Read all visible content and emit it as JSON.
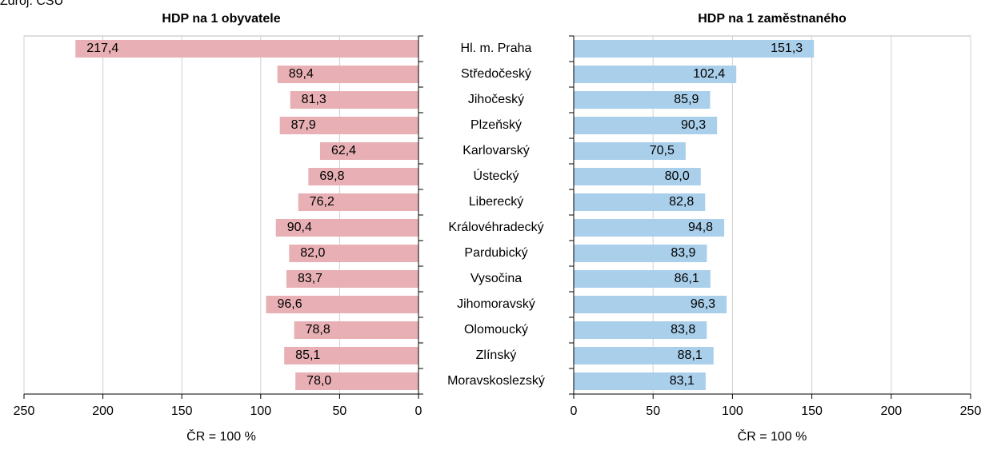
{
  "source": "Zdroj: ČSÚ",
  "chart_data": {
    "type": "butterfly",
    "categories": [
      "Hl. m. Praha",
      "Středočeský",
      "Jihočeský",
      "Plzeňský",
      "Karlovarský",
      "Ústecký",
      "Liberecký",
      "Královéhradecký",
      "Pardubický",
      "Vysočina",
      "Jihomoravský",
      "Olomoucký",
      "Zlínský",
      "Moravskoslezský"
    ],
    "series": [
      {
        "name": "HDP na 1 obyvatele",
        "color": "#e8b0b4",
        "values": [
          217.4,
          89.4,
          81.3,
          87.9,
          62.4,
          69.8,
          76.2,
          90.4,
          82.0,
          83.7,
          96.6,
          78.8,
          85.1,
          78.0
        ],
        "value_labels": [
          "217,4",
          "89,4",
          "81,3",
          "87,9",
          "62,4",
          "69,8",
          "76,2",
          "90,4",
          "82,0",
          "83,7",
          "96,6",
          "78,8",
          "85,1",
          "78,0"
        ],
        "xlim": [
          250,
          0
        ],
        "xticks": [
          250,
          200,
          150,
          100,
          50,
          0
        ],
        "xlabel": "ČR = 100 %"
      },
      {
        "name": "HDP na 1 zaměstnaného",
        "color": "#a9cfeb",
        "values": [
          151.3,
          102.4,
          85.9,
          90.3,
          70.5,
          80.0,
          82.8,
          94.8,
          83.9,
          86.1,
          96.3,
          83.8,
          88.1,
          83.1
        ],
        "value_labels": [
          "151,3",
          "102,4",
          "85,9",
          "90,3",
          "70,5",
          "80,0",
          "82,8",
          "94,8",
          "83,9",
          "86,1",
          "96,3",
          "83,8",
          "88,1",
          "83,1"
        ],
        "xlim": [
          0,
          250
        ],
        "xticks": [
          0,
          50,
          100,
          150,
          200,
          250
        ],
        "xlabel": "ČR = 100 %"
      }
    ],
    "grid": true
  }
}
